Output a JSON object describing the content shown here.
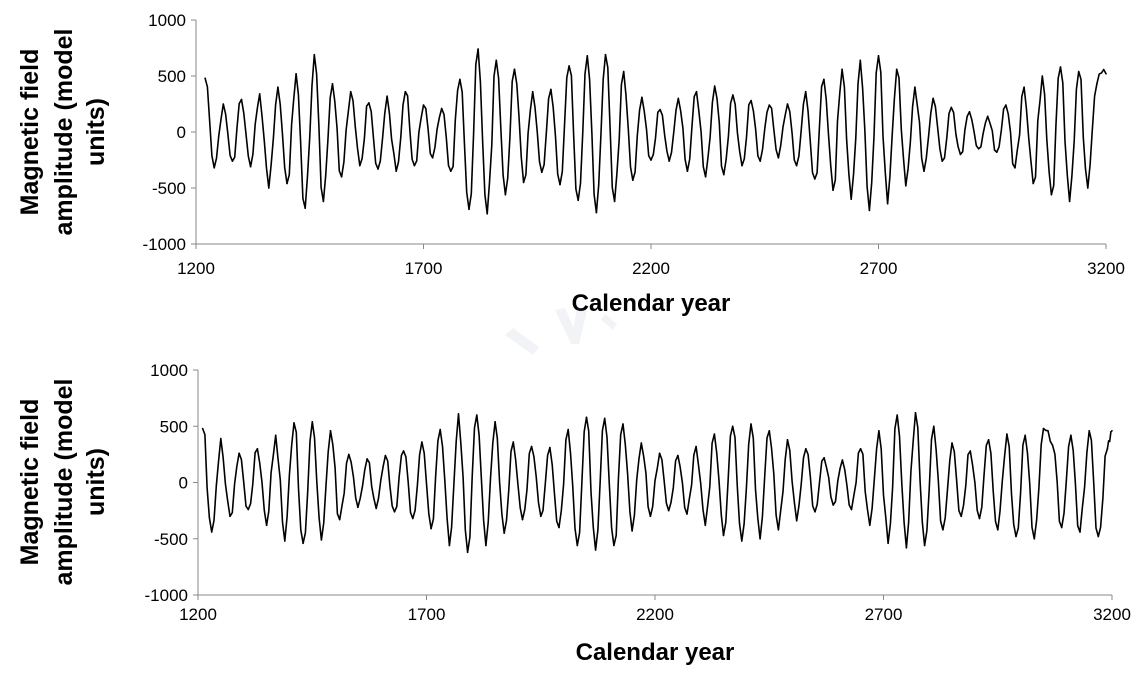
{
  "chart_data": [
    {
      "type": "line",
      "title": "",
      "xlabel": "Calendar year",
      "ylabel_lines": [
        "Magnetic field",
        "amplitude  (model",
        "units)"
      ],
      "xlim": [
        1200,
        3200
      ],
      "ylim": [
        -1000,
        1000
      ],
      "xticks": [
        "1200",
        "1700",
        "2200",
        "2700",
        "3200"
      ],
      "yticks": [
        "1000",
        "500",
        "0",
        "-500",
        "-1000"
      ],
      "x_start": 1220,
      "x_end": 3200,
      "grid": false,
      "legend": "none",
      "line_color": "#000000",
      "series": [
        {
          "x": [
            1220,
            1240,
            1260,
            1280,
            1300,
            1320,
            1340,
            1360,
            1380,
            1400,
            1420,
            1440,
            1460,
            1480,
            1500,
            1520,
            1540,
            1560,
            1580,
            1600,
            1620,
            1640,
            1660,
            1680,
            1700,
            1720,
            1740,
            1760,
            1780,
            1800,
            1820,
            1840,
            1860,
            1880,
            1900,
            1920,
            1940,
            1960,
            1980,
            2000,
            2020,
            2040,
            2060,
            2080,
            2100,
            2120,
            2140,
            2160,
            2180,
            2200,
            2220,
            2240,
            2260,
            2280,
            2300,
            2320,
            2340,
            2360,
            2380,
            2400,
            2420,
            2440,
            2460,
            2480,
            2500,
            2520,
            2540,
            2560,
            2580,
            2600,
            2620,
            2640,
            2660,
            2680,
            2700,
            2720,
            2740,
            2760,
            2780,
            2800,
            2820,
            2840,
            2860,
            2880,
            2900,
            2920,
            2940,
            2960,
            2980,
            3000,
            3020,
            3040,
            3060,
            3080,
            3100,
            3120,
            3140,
            3160,
            3180,
            3200
          ],
          "values": [
            480,
            -320,
            250,
            -260,
            290,
            -310,
            340,
            -500,
            400,
            -460,
            520,
            -680,
            690,
            -620,
            430,
            -400,
            360,
            -300,
            260,
            -330,
            320,
            -350,
            360,
            -300,
            240,
            -230,
            210,
            -350,
            470,
            -690,
            740,
            -730,
            640,
            -560,
            560,
            -450,
            360,
            -360,
            380,
            -470,
            590,
            -610,
            680,
            -720,
            690,
            -620,
            540,
            -430,
            310,
            -250,
            200,
            -260,
            300,
            -350,
            360,
            -400,
            410,
            -380,
            330,
            -300,
            280,
            -260,
            240,
            -230,
            250,
            -300,
            360,
            -420,
            470,
            -520,
            560,
            -600,
            640,
            -700,
            680,
            -640,
            560,
            -480,
            400,
            -350,
            300,
            -260,
            220,
            -200,
            180,
            -150,
            140,
            -180,
            240,
            -320,
            400,
            -460,
            500,
            -560,
            580,
            -620,
            540,
            -500,
            430,
            520
          ]
        }
      ]
    },
    {
      "type": "line",
      "title": "",
      "xlabel": "Calendar year",
      "ylabel_lines": [
        "Magnetic field",
        "amplitude  (model",
        "units)"
      ],
      "xlim": [
        1200,
        3200
      ],
      "ylim": [
        -1000,
        1000
      ],
      "xticks": [
        "1200",
        "1700",
        "2200",
        "2700",
        "3200"
      ],
      "yticks": [
        "1000",
        "500",
        "0",
        "-500",
        "-1000"
      ],
      "x_start": 1210,
      "x_end": 3200,
      "grid": false,
      "legend": "none",
      "line_color": "#000000",
      "series": [
        {
          "x": [
            1210,
            1230,
            1250,
            1270,
            1290,
            1310,
            1330,
            1350,
            1370,
            1390,
            1410,
            1430,
            1450,
            1470,
            1490,
            1510,
            1530,
            1550,
            1570,
            1590,
            1610,
            1630,
            1650,
            1670,
            1690,
            1710,
            1730,
            1750,
            1770,
            1790,
            1810,
            1830,
            1850,
            1870,
            1890,
            1910,
            1930,
            1950,
            1970,
            1990,
            2010,
            2030,
            2050,
            2070,
            2090,
            2110,
            2130,
            2150,
            2170,
            2190,
            2210,
            2230,
            2250,
            2270,
            2290,
            2310,
            2330,
            2350,
            2370,
            2390,
            2410,
            2430,
            2450,
            2470,
            2490,
            2510,
            2530,
            2550,
            2570,
            2590,
            2610,
            2630,
            2650,
            2670,
            2690,
            2710,
            2730,
            2750,
            2770,
            2790,
            2810,
            2830,
            2850,
            2870,
            2890,
            2910,
            2930,
            2950,
            2970,
            2990,
            3010,
            3030,
            3050,
            3070,
            3090,
            3110,
            3130,
            3150,
            3170,
            3190,
            3200
          ],
          "values": [
            480,
            -440,
            390,
            -300,
            260,
            -240,
            300,
            -380,
            420,
            -520,
            530,
            -540,
            540,
            -510,
            460,
            -330,
            250,
            -220,
            210,
            -230,
            240,
            -260,
            280,
            -320,
            360,
            -410,
            470,
            -560,
            610,
            -620,
            600,
            -560,
            540,
            -450,
            360,
            -330,
            320,
            -300,
            310,
            -400,
            470,
            -560,
            580,
            -600,
            570,
            -560,
            520,
            -430,
            350,
            -300,
            260,
            -250,
            240,
            -280,
            320,
            -380,
            430,
            -470,
            500,
            -520,
            520,
            -500,
            460,
            -420,
            380,
            -340,
            300,
            -260,
            220,
            -200,
            200,
            -240,
            300,
            -380,
            460,
            -540,
            600,
            -580,
            620,
            -560,
            500,
            -420,
            350,
            -300,
            280,
            -320,
            380,
            -420,
            430,
            -480,
            420,
            -500,
            480,
            330,
            -400,
            420,
            -440,
            460,
            -480,
            300,
            460
          ]
        }
      ]
    }
  ]
}
